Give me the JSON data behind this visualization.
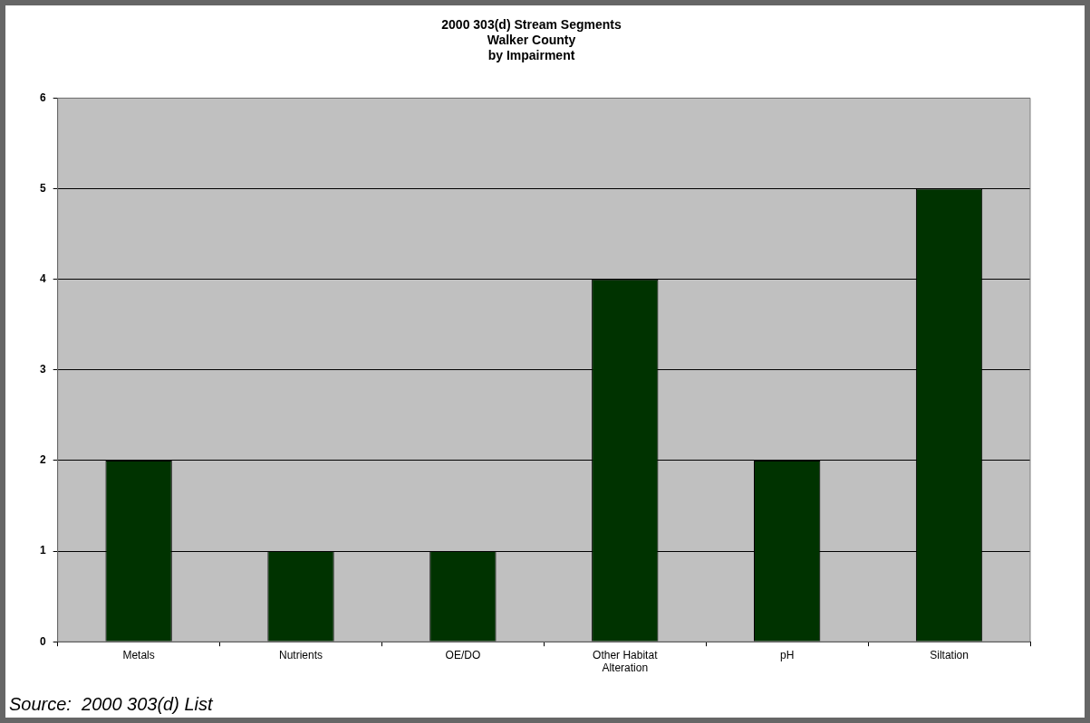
{
  "chart_data": {
    "type": "bar",
    "title": "2000 303(d) Stream Segments\nWalker County\nby Impairment",
    "categories": [
      "Metals",
      "Nutrients",
      "OE/DO",
      "Other Habitat Alteration",
      "pH",
      "Siltation"
    ],
    "values": [
      2,
      1,
      1,
      4,
      2,
      5
    ],
    "color": "#003300",
    "ylim": [
      0,
      6
    ],
    "yticks": [
      0,
      1,
      2,
      3,
      4,
      5,
      6
    ],
    "grid": "y",
    "annotations": [
      "Source:  2000 303(d) List"
    ]
  }
}
